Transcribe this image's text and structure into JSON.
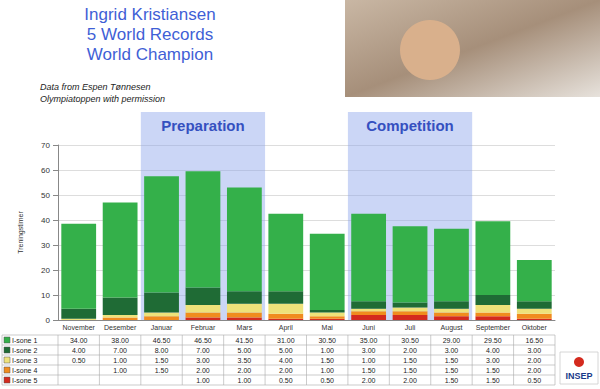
{
  "chart_data": {
    "type": "bar",
    "title": "Ingrid Kristiansen\n5 World Records\nWorld Champion",
    "notes": [
      "Data from Espen Tønnesen",
      "Olympiatoppen with permission"
    ],
    "logo": "INSEP",
    "y_label": "Treningstimer",
    "categories": [
      "November",
      "Desember",
      "Januar",
      "Februar",
      "Mars",
      "April",
      "Mai",
      "Juni",
      "Juli",
      "August",
      "September",
      "Oktober"
    ],
    "periods": [
      {
        "label": "Preparation",
        "from": "Januar",
        "to": "Mars"
      },
      {
        "label": "Competition",
        "from": "Juni",
        "to": "August"
      }
    ],
    "stacked": true,
    "series": [
      {
        "name": "I-sone 1",
        "color": "#34b04a",
        "values": [
          34,
          38,
          46.5,
          46.5,
          41.5,
          31,
          30.5,
          35,
          30.5,
          29,
          29.5,
          16.5
        ],
        "value_labels": [
          "34.00",
          "38.00",
          "46.50",
          "46.50",
          "41.50",
          "31.00",
          "30.50",
          "35.00",
          "30.50",
          "29.00",
          "29.50",
          "16.50"
        ]
      },
      {
        "name": "I-sone 2",
        "color": "#1f6b35",
        "values": [
          4,
          7,
          8,
          7,
          5,
          5,
          1,
          3,
          2,
          3,
          4,
          3
        ],
        "value_labels": [
          "4.00",
          "7.00",
          "8.00",
          "7.00",
          "5.00",
          "5.00",
          "1.00",
          "3.00",
          "2.00",
          "3.00",
          "4.00",
          "3.00"
        ]
      },
      {
        "name": "I-sone 3",
        "color": "#eee27a",
        "values": [
          0.5,
          1,
          1.5,
          3,
          3.5,
          4,
          1.5,
          1,
          1.5,
          1.5,
          3,
          2
        ],
        "value_labels": [
          "0.50",
          "1.00",
          "1.50",
          "3.00",
          "3.50",
          "4.00",
          "1.50",
          "1.00",
          "1.50",
          "1.50",
          "3.00",
          "2.00"
        ]
      },
      {
        "name": "I-sone 4",
        "color": "#f08c1e",
        "values": [
          null,
          1,
          1.5,
          2,
          2,
          2,
          1,
          1.5,
          1.5,
          1.5,
          1.5,
          2
        ],
        "value_labels": [
          null,
          "1.00",
          "1.50",
          "2.00",
          "2.00",
          "2.00",
          "1.00",
          "1.50",
          "1.50",
          "1.50",
          "1.50",
          "2.00"
        ]
      },
      {
        "name": "I-sone 5",
        "color": "#d42a1e",
        "values": [
          null,
          null,
          null,
          1,
          1,
          0.5,
          0.5,
          2,
          2,
          1.5,
          1.5,
          0.5
        ],
        "value_labels": [
          null,
          null,
          null,
          "1.00",
          "1.00",
          "0.50",
          "0.50",
          "2.00",
          "2.00",
          "1.50",
          "1.50",
          "0.50"
        ]
      }
    ],
    "ylim": [
      0,
      70
    ],
    "yticks": [
      0,
      10,
      20,
      30,
      40,
      50,
      60,
      70
    ],
    "grid": true
  }
}
